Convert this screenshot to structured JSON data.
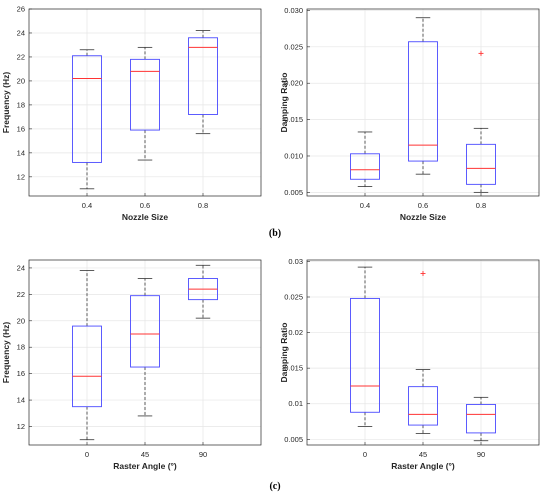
{
  "panel_labels": {
    "b": "(b)",
    "c": "(c)"
  },
  "colors": {
    "box": "#4a4aff",
    "median": "#ff3333",
    "whisker": "#333333",
    "outlier": "#ff3333",
    "grid": "#e6e6e6",
    "axis": "#262626"
  },
  "chart_data": [
    {
      "id": "b-left",
      "type": "box",
      "xlabel": "Nozzle Size",
      "ylabel": "Frequency (Hz)",
      "ylim": [
        10.4,
        26
      ],
      "yticks": [
        "12",
        "14",
        "16",
        "18",
        "20",
        "22",
        "24",
        "26"
      ],
      "categories": [
        "0.4",
        "0.6",
        "0.8"
      ],
      "boxes": [
        {
          "whisker_low": 11.0,
          "q1": 13.2,
          "median": 20.2,
          "q3": 22.1,
          "whisker_high": 22.6,
          "outliers": []
        },
        {
          "whisker_low": 13.4,
          "q1": 15.9,
          "median": 20.8,
          "q3": 21.8,
          "whisker_high": 22.8,
          "outliers": []
        },
        {
          "whisker_low": 15.6,
          "q1": 17.2,
          "median": 22.8,
          "q3": 23.6,
          "whisker_high": 24.2,
          "outliers": []
        }
      ],
      "grid": true
    },
    {
      "id": "b-right",
      "type": "box",
      "xlabel": "Nozzle Size",
      "ylabel": "Damping Ratio",
      "ylim": [
        0.0045,
        0.0302
      ],
      "yticks": [
        "0.005",
        "0.010",
        "0.015",
        "0.020",
        "0.025",
        "0.030"
      ],
      "categories": [
        "0.4",
        "0.6",
        "0.8"
      ],
      "boxes": [
        {
          "whisker_low": 0.0058,
          "q1": 0.0068,
          "median": 0.0081,
          "q3": 0.0103,
          "whisker_high": 0.0133,
          "outliers": []
        },
        {
          "whisker_low": 0.0075,
          "q1": 0.0093,
          "median": 0.0115,
          "q3": 0.0257,
          "whisker_high": 0.029,
          "outliers": []
        },
        {
          "whisker_low": 0.005,
          "q1": 0.0061,
          "median": 0.0083,
          "q3": 0.0116,
          "whisker_high": 0.0138,
          "outliers": [
            0.0241
          ]
        }
      ],
      "grid": true
    },
    {
      "id": "c-left",
      "type": "box",
      "xlabel": "Raster Angle (°)",
      "ylabel": "Frequency (Hz)",
      "ylim": [
        10.6,
        24.6
      ],
      "yticks": [
        "12",
        "14",
        "16",
        "18",
        "20",
        "22",
        "24"
      ],
      "categories": [
        "0",
        "45",
        "90"
      ],
      "boxes": [
        {
          "whisker_low": 11.0,
          "q1": 13.5,
          "median": 15.8,
          "q3": 19.6,
          "whisker_high": 23.8,
          "outliers": []
        },
        {
          "whisker_low": 12.8,
          "q1": 16.5,
          "median": 19.0,
          "q3": 21.9,
          "whisker_high": 23.2,
          "outliers": []
        },
        {
          "whisker_low": 20.2,
          "q1": 21.6,
          "median": 22.4,
          "q3": 23.2,
          "whisker_high": 24.2,
          "outliers": []
        }
      ],
      "grid": true
    },
    {
      "id": "c-right",
      "type": "box",
      "xlabel": "Raster Angle (°)",
      "ylabel": "Damping Ratio",
      "ylim": [
        0.0042,
        0.0302
      ],
      "yticks": [
        "0.005",
        "0.01",
        "0.015",
        "0.02",
        "0.025",
        "0.03"
      ],
      "categories": [
        "0",
        "45",
        "90"
      ],
      "boxes": [
        {
          "whisker_low": 0.0068,
          "q1": 0.0088,
          "median": 0.0125,
          "q3": 0.0248,
          "whisker_high": 0.0292,
          "outliers": []
        },
        {
          "whisker_low": 0.0058,
          "q1": 0.007,
          "median": 0.0085,
          "q3": 0.0124,
          "whisker_high": 0.0148,
          "outliers": [
            0.0283
          ]
        },
        {
          "whisker_low": 0.0048,
          "q1": 0.0059,
          "median": 0.0085,
          "q3": 0.0099,
          "whisker_high": 0.0109,
          "outliers": []
        }
      ],
      "grid": true
    }
  ]
}
